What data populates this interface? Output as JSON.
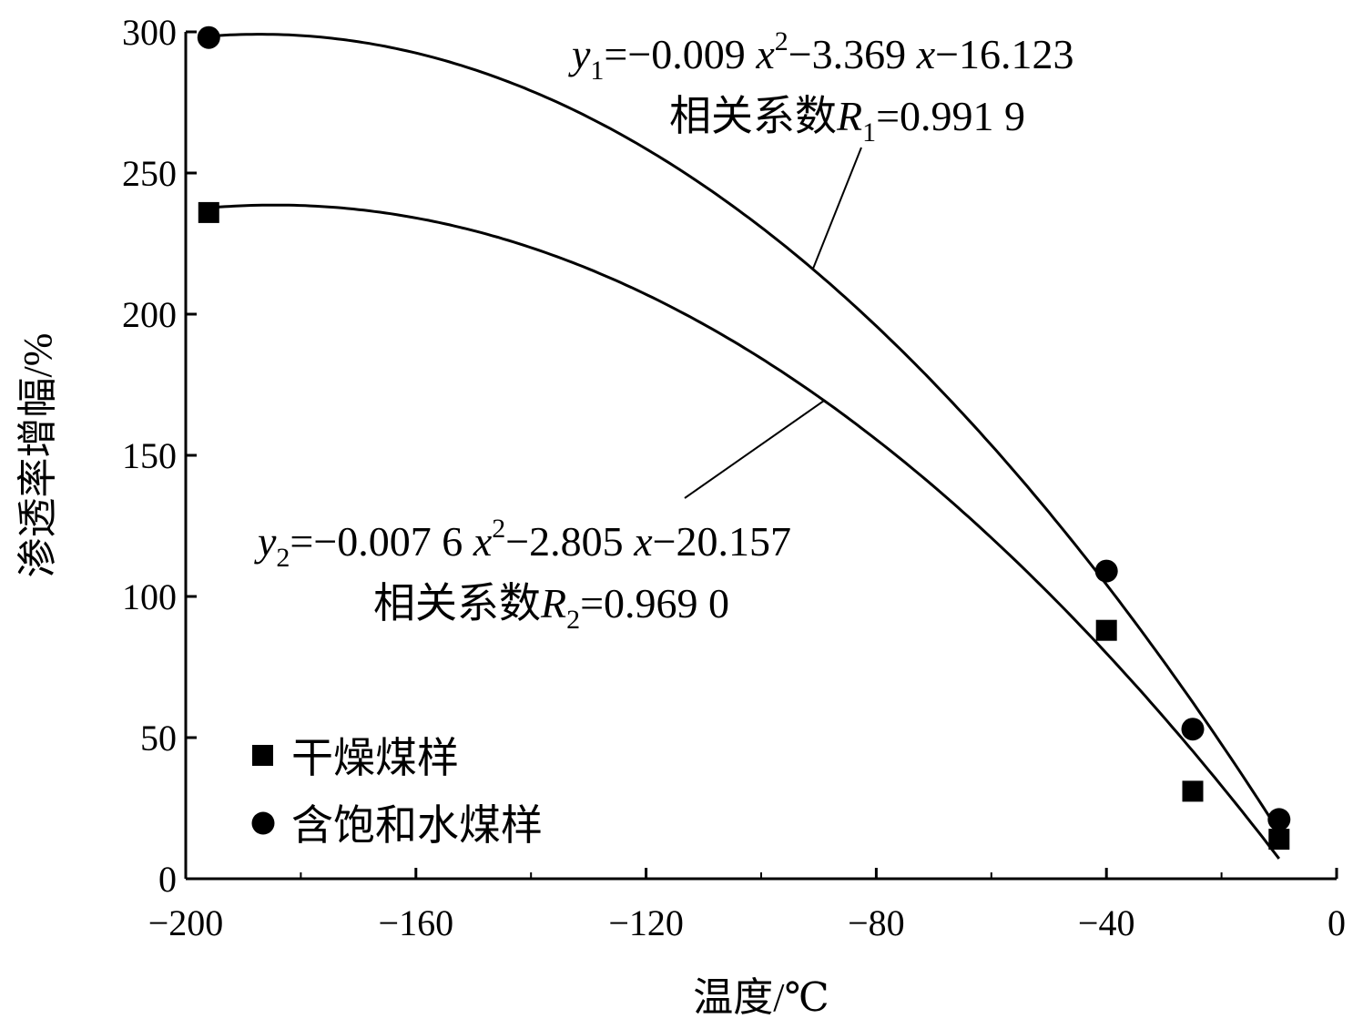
{
  "chart_data": {
    "type": "scatter",
    "xlabel": "温度/℃",
    "ylabel": "渗透率增幅/%",
    "xlim": [
      -200,
      0
    ],
    "ylim": [
      0,
      300
    ],
    "x_ticks": [
      -200,
      -160,
      -120,
      -80,
      -40,
      0
    ],
    "x_tick_labels": [
      "−200",
      "−160",
      "−120",
      "−80",
      "−40",
      "0"
    ],
    "y_ticks": [
      0,
      50,
      100,
      150,
      200,
      250,
      300
    ],
    "y_tick_labels": [
      "0",
      "50",
      "100",
      "150",
      "200",
      "250",
      "300"
    ],
    "grid": false,
    "legend_position": "bottom-left",
    "series": [
      {
        "name": "干燥煤样",
        "marker": "square",
        "x": [
          -196,
          -40,
          -25,
          -10
        ],
        "y": [
          236,
          88,
          31,
          14
        ]
      },
      {
        "name": "含饱和水煤样",
        "marker": "circle",
        "x": [
          -196,
          -40,
          -25,
          -10
        ],
        "y": [
          298,
          109,
          53,
          21
        ]
      }
    ],
    "fits": [
      {
        "series": "含饱和水煤样",
        "coefficients": [
          -0.009,
          -3.369,
          -16.123
        ],
        "x_range": [
          -196,
          -10
        ],
        "equation_label": {
          "var": "y",
          "sub": "1",
          "eq": "=−0.009 ",
          "x": "x",
          "sup": "2",
          "rest": "−3.369 ",
          "x2": "x",
          "tail": "−16.123"
        },
        "r_label": {
          "prefix": "相关系数",
          "var": "R",
          "sub": "1",
          "value": "=0.991 9"
        }
      },
      {
        "series": "干燥煤样",
        "coefficients": [
          -0.0076,
          -2.805,
          -20.157
        ],
        "x_range": [
          -196,
          -10
        ],
        "equation_label": {
          "var": "y",
          "sub": "2",
          "eq": "=−0.007 6 ",
          "x": "x",
          "sup": "2",
          "rest": "−2.805 ",
          "x2": "x",
          "tail": "−20.157"
        },
        "r_label": {
          "prefix": "相关系数",
          "var": "R",
          "sub": "2",
          "value": "=0.969 0"
        }
      }
    ]
  }
}
